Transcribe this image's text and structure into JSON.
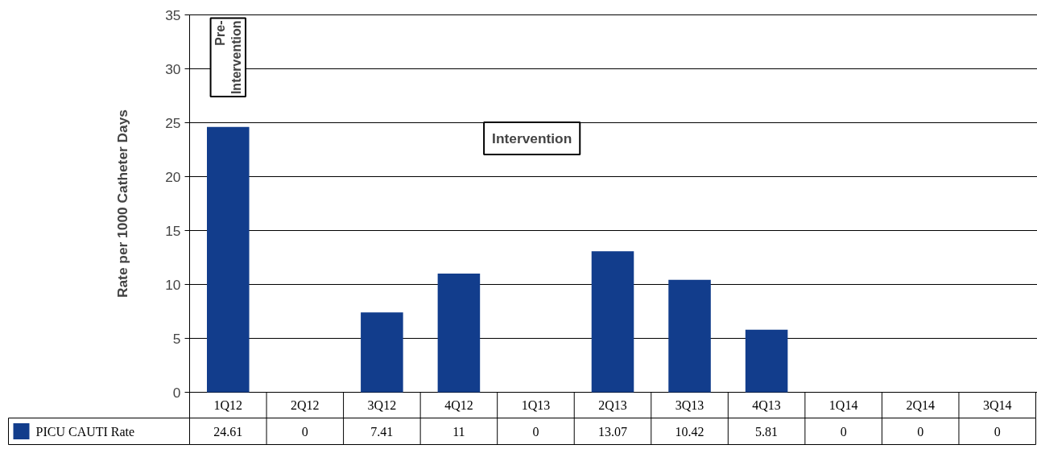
{
  "chart_data": {
    "type": "bar",
    "ylabel": "Rate per 1000 Catheter Days",
    "categories": [
      "1Q12",
      "2Q12",
      "3Q12",
      "4Q12",
      "1Q13",
      "2Q13",
      "3Q13",
      "4Q13",
      "1Q14",
      "2Q14",
      "3Q14"
    ],
    "series": [
      {
        "name": "PICU CAUTI Rate",
        "color": "#123d8c",
        "values": [
          24.61,
          0,
          7.41,
          11,
          0,
          13.07,
          10.42,
          5.81,
          0,
          0,
          0
        ]
      }
    ],
    "ylim": [
      0,
      35
    ],
    "yticks": [
      0,
      5,
      10,
      15,
      20,
      25,
      30,
      35
    ],
    "grid": "y",
    "legend": "bottom",
    "data_labels": true,
    "annotations": [
      "Pre-Intervention",
      "Intervention"
    ]
  }
}
